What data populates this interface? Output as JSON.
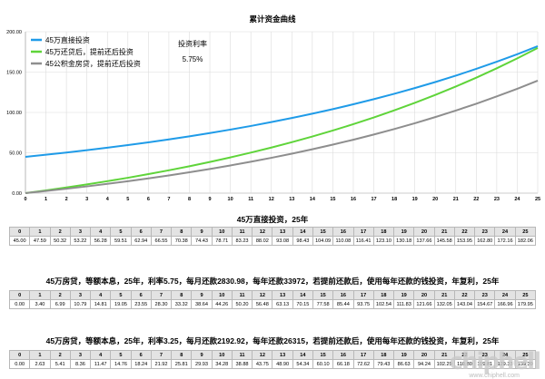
{
  "chart_data": {
    "type": "line",
    "title": "累计资金曲线",
    "xlabel": "",
    "ylabel": "",
    "xlim": [
      0,
      25
    ],
    "ylim": [
      0,
      200
    ],
    "yticks": [
      "0.00",
      "50.00",
      "100.00",
      "150.00",
      "200.00"
    ],
    "xticks": [
      "0",
      "1",
      "2",
      "3",
      "4",
      "5",
      "6",
      "7",
      "8",
      "9",
      "10",
      "11",
      "12",
      "13",
      "14",
      "15",
      "16",
      "17",
      "18",
      "19",
      "20",
      "21",
      "22",
      "23",
      "24",
      "25"
    ],
    "grid": true,
    "legend_position": "top-left",
    "annotation": {
      "label": "投资利率",
      "value": "5.75%"
    },
    "x": [
      0,
      1,
      2,
      3,
      4,
      5,
      6,
      7,
      8,
      9,
      10,
      11,
      12,
      13,
      14,
      15,
      16,
      17,
      18,
      19,
      20,
      21,
      22,
      23,
      24,
      25
    ],
    "series": [
      {
        "name": "45万直接投资",
        "color": "#1f9be8",
        "values": [
          45.0,
          47.59,
          50.32,
          53.22,
          56.28,
          59.51,
          62.94,
          66.55,
          70.38,
          74.43,
          78.71,
          83.23,
          88.02,
          93.08,
          98.43,
          104.09,
          110.08,
          116.41,
          123.1,
          130.18,
          137.66,
          145.58,
          153.95,
          162.8,
          172.16,
          182.06
        ]
      },
      {
        "name": "45万还贷后，提前还后投资",
        "color": "#5fd43a",
        "values": [
          0.0,
          3.4,
          6.99,
          10.79,
          14.81,
          19.05,
          23.55,
          28.3,
          33.32,
          38.64,
          44.26,
          50.2,
          56.48,
          63.13,
          70.15,
          77.58,
          85.44,
          93.75,
          102.54,
          111.83,
          121.66,
          132.05,
          143.04,
          154.67,
          166.96,
          179.95
        ]
      },
      {
        "name": "45公积金房贷，提前还后投资",
        "color": "#8e8e8e",
        "values": [
          0.0,
          2.63,
          5.41,
          8.36,
          11.47,
          14.76,
          18.24,
          21.92,
          25.81,
          29.93,
          34.28,
          38.88,
          43.75,
          48.9,
          54.34,
          60.1,
          66.18,
          72.62,
          79.43,
          86.63,
          94.24,
          102.29,
          110.8,
          119.81,
          129.33,
          139.39
        ]
      }
    ]
  },
  "tables": [
    {
      "title": "45万直接投资，25年",
      "header": [
        "0",
        "1",
        "2",
        "3",
        "4",
        "5",
        "6",
        "7",
        "8",
        "9",
        "10",
        "11",
        "12",
        "13",
        "14",
        "15",
        "16",
        "17",
        "18",
        "19",
        "20",
        "21",
        "22",
        "23",
        "24",
        "25"
      ],
      "values": [
        "45.00",
        "47.59",
        "50.32",
        "53.22",
        "56.28",
        "59.51",
        "62.94",
        "66.55",
        "70.38",
        "74.43",
        "78.71",
        "83.23",
        "88.02",
        "93.08",
        "98.43",
        "104.09",
        "110.08",
        "116.41",
        "123.10",
        "130.18",
        "137.66",
        "145.58",
        "153.95",
        "162.80",
        "172.16",
        "182.06"
      ]
    },
    {
      "title": "45万房贷，等额本息，25年，利率5.75，每月还款2830.98，每年还款33972，若提前还款后，使用每年还款的钱投资，年复利，25年",
      "header": [
        "0",
        "1",
        "2",
        "3",
        "4",
        "5",
        "6",
        "7",
        "8",
        "9",
        "10",
        "11",
        "12",
        "13",
        "14",
        "15",
        "16",
        "17",
        "18",
        "19",
        "20",
        "21",
        "22",
        "23",
        "24",
        "25"
      ],
      "values": [
        "0.00",
        "3.40",
        "6.99",
        "10.79",
        "14.81",
        "19.05",
        "23.55",
        "28.30",
        "33.32",
        "38.64",
        "44.26",
        "50.20",
        "56.48",
        "63.13",
        "70.15",
        "77.58",
        "85.44",
        "93.75",
        "102.54",
        "111.83",
        "121.66",
        "132.05",
        "143.04",
        "154.67",
        "166.96",
        "179.95"
      ]
    },
    {
      "title": "45万房贷，等额本息，25年，利率3.25，每月还款2192.92，每年还款26315，若提前还款后，使用每年还款的钱投资，年复利，25年",
      "header": [
        "0",
        "1",
        "2",
        "3",
        "4",
        "5",
        "6",
        "7",
        "8",
        "9",
        "10",
        "11",
        "12",
        "13",
        "14",
        "15",
        "16",
        "17",
        "18",
        "19",
        "20",
        "21",
        "22",
        "23",
        "24",
        "25"
      ],
      "values": [
        "0.00",
        "2.63",
        "5.41",
        "8.36",
        "11.47",
        "14.76",
        "18.24",
        "21.92",
        "25.81",
        "29.93",
        "34.28",
        "38.88",
        "43.75",
        "48.90",
        "54.34",
        "60.10",
        "66.18",
        "72.62",
        "79.43",
        "86.63",
        "94.24",
        "102.29",
        "110.80",
        "119.81",
        "129.33",
        "139.39"
      ]
    }
  ],
  "watermark": {
    "logo": "chiphell",
    "url": "www.chiphell.com"
  }
}
